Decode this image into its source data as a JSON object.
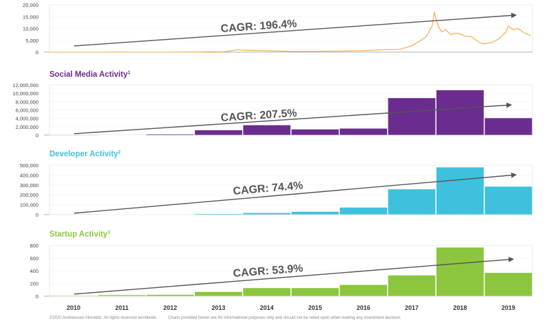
{
  "chart_data": [
    {
      "type": "line",
      "title": "",
      "ylim": [
        0,
        20000
      ],
      "yticks": [
        0,
        5000,
        10000,
        15000,
        20000
      ],
      "ytick_labels": [
        "0",
        "5,000",
        "10,000",
        "15,000",
        "20,000"
      ],
      "color": "#f2a541",
      "annotation": "CAGR: 196.4%",
      "x": [
        2010.0,
        2010.5,
        2011.0,
        2011.4,
        2011.8,
        2012.5,
        2013.0,
        2013.3,
        2013.6,
        2013.9,
        2014.0,
        2014.5,
        2015.0,
        2015.5,
        2016.0,
        2016.5,
        2016.9,
        2017.0,
        2017.25,
        2017.5,
        2017.65,
        2017.8,
        2017.92,
        2017.97,
        2018.0,
        2018.05,
        2018.12,
        2018.2,
        2018.3,
        2018.45,
        2018.6,
        2018.75,
        2018.9,
        2019.0,
        2019.15,
        2019.3,
        2019.45,
        2019.5,
        2019.6,
        2019.7,
        2019.8,
        2019.9,
        2019.97
      ],
      "y": [
        0,
        0,
        1,
        20,
        5,
        10,
        20,
        120,
        100,
        1000,
        800,
        600,
        250,
        270,
        430,
        650,
        960,
        1000,
        1200,
        2600,
        4500,
        6500,
        11000,
        17000,
        14000,
        11000,
        8500,
        9500,
        7500,
        8000,
        6800,
        6400,
        4000,
        3500,
        4000,
        5500,
        8500,
        11000,
        9500,
        10000,
        8500,
        7500,
        7000
      ]
    },
    {
      "type": "bar",
      "title": "Social Media Activity",
      "title_sup": "1",
      "color": "#6a2c8e",
      "ylim": [
        0,
        12000000
      ],
      "yticks": [
        0,
        2000000,
        4000000,
        6000000,
        8000000,
        10000000,
        12000000
      ],
      "ytick_labels": [
        "0",
        "2,000,000",
        "4,000,000",
        "6,000,000",
        "8,000,000",
        "10,000,000",
        "12,000,000"
      ],
      "annotation": "CAGR: 207.5%",
      "categories": [
        "2010",
        "2011",
        "2012",
        "2013",
        "2014",
        "2015",
        "2016",
        "2017",
        "2018",
        "2019"
      ],
      "values": [
        10000,
        60000,
        200000,
        1200000,
        2400000,
        1400000,
        1600000,
        8900000,
        10800000,
        4100000
      ]
    },
    {
      "type": "bar",
      "title": "Developer Activity",
      "title_sup": "2",
      "color": "#3fc1de",
      "ylim": [
        0,
        500000
      ],
      "yticks": [
        0,
        100000,
        200000,
        300000,
        400000,
        500000
      ],
      "ytick_labels": [
        "0",
        "100,000",
        "200,000",
        "300,000",
        "400,000",
        "500,000"
      ],
      "annotation": "CAGR: 74.4%",
      "categories": [
        "2010",
        "2011",
        "2012",
        "2013",
        "2014",
        "2015",
        "2016",
        "2017",
        "2018",
        "2019"
      ],
      "values": [
        500,
        1500,
        3000,
        8000,
        18000,
        30000,
        73000,
        258000,
        480000,
        285000
      ]
    },
    {
      "type": "bar",
      "title": "Startup Activity",
      "title_sup": "3",
      "color": "#8cc63f",
      "ylim": [
        0,
        800
      ],
      "yticks": [
        0,
        200,
        400,
        600,
        800
      ],
      "ytick_labels": [
        "0",
        "200",
        "400",
        "600",
        "800"
      ],
      "annotation": "CAGR: 53.9%",
      "categories": [
        "2010",
        "2011",
        "2012",
        "2013",
        "2014",
        "2015",
        "2016",
        "2017",
        "2018",
        "2019"
      ],
      "values": [
        10,
        20,
        25,
        70,
        130,
        130,
        180,
        330,
        770,
        370
      ]
    }
  ],
  "x_axis": {
    "tick_labels": [
      "2010",
      "2011",
      "2012",
      "2013",
      "2014",
      "2015",
      "2016",
      "2017",
      "2018",
      "2019"
    ]
  },
  "footer": {
    "copyright": "©2020 Andreessen Horowitz. All rights reserved worldwide.",
    "disclaimer": "Charts provided herein are for informational purposes only and should not be relied upon when making any investment decision."
  }
}
